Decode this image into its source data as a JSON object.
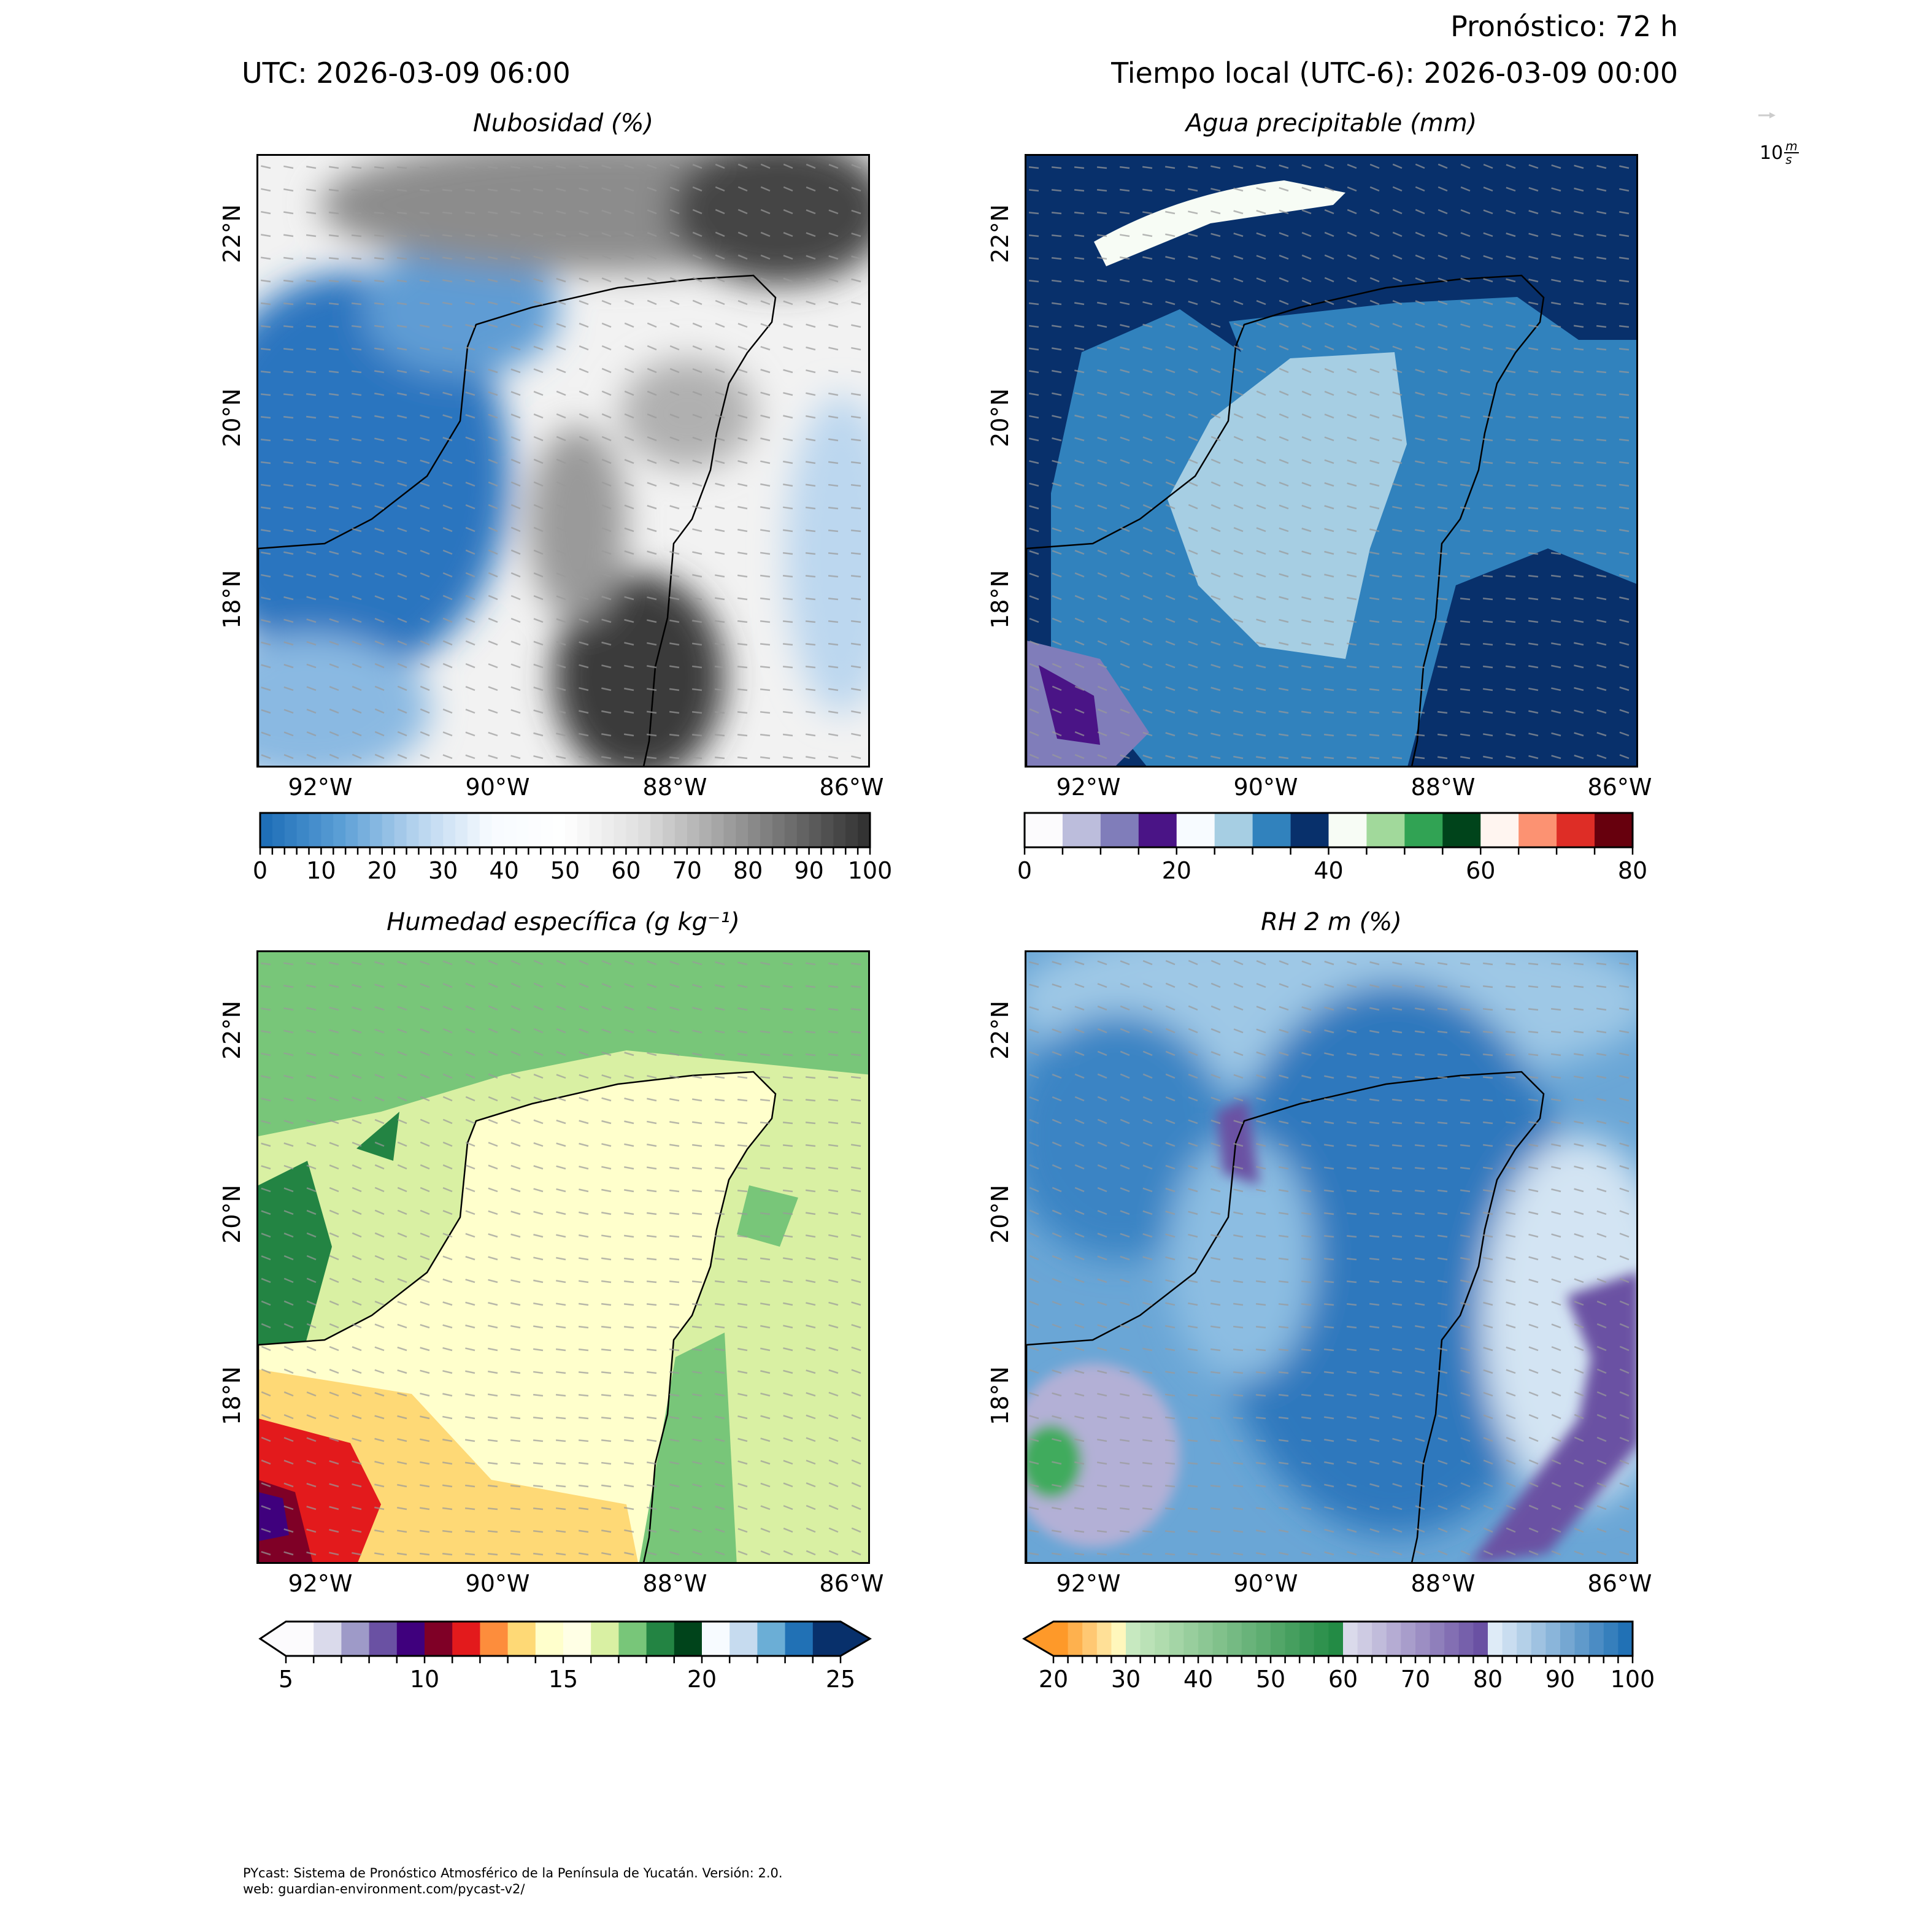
{
  "header": {
    "forecast": "Pronóstico: 72 h",
    "utc": "UTC:  2026-03-09 06:00",
    "local": "Tiempo local (UTC-6): 2026-03-09 00:00"
  },
  "wind_key": {
    "value": "10",
    "unit_num": "m",
    "unit_den": "s"
  },
  "axes": {
    "lon_labels": [
      "92°W",
      "90°W",
      "88°W",
      "86°W"
    ],
    "lat_labels": [
      "22°N",
      "20°N",
      "18°N"
    ]
  },
  "panels": [
    {
      "title": "Nubosidad (%)",
      "colorbar": {
        "ticks": [
          "0",
          "10",
          "20",
          "30",
          "40",
          "50",
          "60",
          "70",
          "80",
          "90",
          "100"
        ],
        "colors": [
          "#1f6fb8",
          "#5b9fd6",
          "#b5d3ee",
          "#f7fbff",
          "#ffffff",
          "#e0e0e0",
          "#a8a8a8",
          "#6e6e6e",
          "#333333"
        ]
      }
    },
    {
      "title": "Agua precipitable (mm)",
      "colorbar": {
        "ticks": [
          "0",
          "20",
          "40",
          "60",
          "80"
        ],
        "colors": [
          "#fcfbfd",
          "#bcbddc",
          "#807dba",
          "#4a1486",
          "#f7fbff",
          "#a6cee3",
          "#3182bd",
          "#08306b",
          "#f7fcf5",
          "#a1d99b",
          "#31a354",
          "#00441b",
          "#fff5f0",
          "#fc9272",
          "#de2d26",
          "#67000d"
        ]
      }
    },
    {
      "title": "Humedad específica (g kg⁻¹)",
      "colorbar": {
        "ticks": [
          "5",
          "10",
          "15",
          "20",
          "25"
        ],
        "colors": [
          "#fcfbfd",
          "#dadaeb",
          "#9e9ac8",
          "#6a51a3",
          "#3f007d",
          "#7f0026",
          "#e31a1c",
          "#fd8d3c",
          "#fed976",
          "#ffffcc",
          "#ffffe5",
          "#d9f0a3",
          "#78c679",
          "#238443",
          "#00441b",
          "#f7fbff",
          "#c6dbef",
          "#6baed6",
          "#2171b5",
          "#08306b"
        ]
      }
    },
    {
      "title": "RH 2 m (%)",
      "colorbar": {
        "ticks": [
          "20",
          "30",
          "40",
          "50",
          "60",
          "70",
          "80",
          "90",
          "100"
        ],
        "colors": [
          "#fe9929",
          "#fff7bc",
          "#c7e9c0",
          "#238b45",
          "#dadaeb",
          "#6a51a3",
          "#deebf7",
          "#2171b5"
        ]
      }
    }
  ],
  "footer": {
    "line1": "PYcast: Sistema de Pronóstico Atmosférico de la Península de Yucatán. Versión: 2.0.",
    "line2": "web: guardian-environment.com/pycast-v2/"
  }
}
